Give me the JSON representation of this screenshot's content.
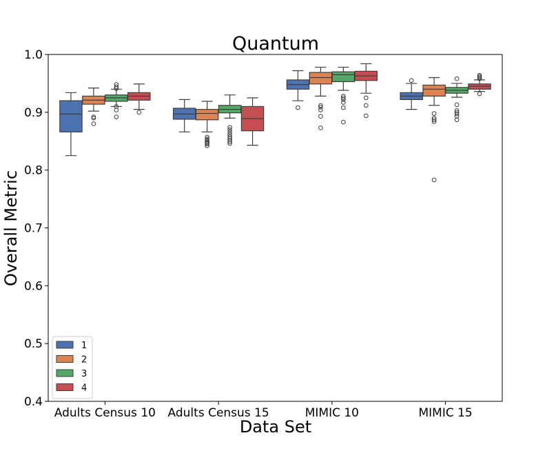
{
  "chart_data": {
    "type": "box",
    "title": "Quantum",
    "xlabel": "Data Set",
    "ylabel": "Overall Metric",
    "ylim": [
      0.4,
      1.0
    ],
    "yticks": [
      "0.4",
      "0.5",
      "0.6",
      "0.7",
      "0.8",
      "0.9",
      "1.0"
    ],
    "categories": [
      "Adults Census 10",
      "Adults Census 15",
      "MIMIC 10",
      "MIMIC 15"
    ],
    "legend_position": "bottom-left",
    "series": [
      {
        "name": "1",
        "color": "#4c72b0",
        "boxes": [
          {
            "whislo": 0.825,
            "q1": 0.866,
            "med": 0.897,
            "q3": 0.92,
            "whishi": 0.934,
            "fliers": []
          },
          {
            "whislo": 0.866,
            "q1": 0.888,
            "med": 0.897,
            "q3": 0.907,
            "whishi": 0.922,
            "fliers": []
          },
          {
            "whislo": 0.92,
            "q1": 0.94,
            "med": 0.948,
            "q3": 0.956,
            "whishi": 0.972,
            "fliers": [
              0.908
            ]
          },
          {
            "whislo": 0.905,
            "q1": 0.922,
            "med": 0.928,
            "q3": 0.934,
            "whishi": 0.95,
            "fliers": [
              0.955
            ]
          }
        ]
      },
      {
        "name": "2",
        "color": "#dd8452",
        "boxes": [
          {
            "whislo": 0.902,
            "q1": 0.914,
            "med": 0.921,
            "q3": 0.928,
            "whishi": 0.942,
            "fliers": [
              0.892,
              0.89,
              0.88
            ]
          },
          {
            "whislo": 0.866,
            "q1": 0.887,
            "med": 0.898,
            "q3": 0.905,
            "whishi": 0.919,
            "fliers": [
              0.857,
              0.854,
              0.852,
              0.849,
              0.847,
              0.845,
              0.842
            ]
          },
          {
            "whislo": 0.928,
            "q1": 0.949,
            "med": 0.96,
            "q3": 0.969,
            "whishi": 0.978,
            "fliers": [
              0.912,
              0.909,
              0.904,
              0.893,
              0.873
            ]
          },
          {
            "whislo": 0.912,
            "q1": 0.928,
            "med": 0.94,
            "q3": 0.947,
            "whishi": 0.96,
            "fliers": [
              0.898,
              0.89,
              0.887,
              0.884,
              0.783
            ]
          }
        ]
      },
      {
        "name": "3",
        "color": "#55a868",
        "boxes": [
          {
            "whislo": 0.91,
            "q1": 0.919,
            "med": 0.925,
            "q3": 0.93,
            "whishi": 0.94,
            "fliers": [
              0.948,
              0.944,
              0.941,
              0.91,
              0.904,
              0.892
            ]
          },
          {
            "whislo": 0.89,
            "q1": 0.899,
            "med": 0.905,
            "q3": 0.912,
            "whishi": 0.93,
            "fliers": [
              0.874,
              0.87,
              0.866,
              0.862,
              0.858,
              0.855,
              0.852,
              0.849,
              0.846
            ]
          },
          {
            "whislo": 0.938,
            "q1": 0.953,
            "med": 0.965,
            "q3": 0.97,
            "whishi": 0.978,
            "fliers": [
              0.928,
              0.925,
              0.922,
              0.917,
              0.908,
              0.883
            ]
          },
          {
            "whislo": 0.926,
            "q1": 0.933,
            "med": 0.938,
            "q3": 0.943,
            "whishi": 0.95,
            "fliers": [
              0.958,
              0.913,
              0.903,
              0.9,
              0.897,
              0.893,
              0.887
            ]
          }
        ]
      },
      {
        "name": "4",
        "color": "#c44e52",
        "boxes": [
          {
            "whislo": 0.905,
            "q1": 0.921,
            "med": 0.928,
            "q3": 0.934,
            "whishi": 0.949,
            "fliers": [
              0.9
            ]
          },
          {
            "whislo": 0.843,
            "q1": 0.868,
            "med": 0.889,
            "q3": 0.91,
            "whishi": 0.925,
            "fliers": []
          },
          {
            "whislo": 0.933,
            "q1": 0.955,
            "med": 0.963,
            "q3": 0.971,
            "whishi": 0.984,
            "fliers": [
              0.925,
              0.912,
              0.894
            ]
          },
          {
            "whislo": 0.936,
            "q1": 0.94,
            "med": 0.945,
            "q3": 0.949,
            "whishi": 0.956,
            "fliers": [
              0.964,
              0.962,
              0.96,
              0.958,
              0.932
            ]
          }
        ]
      }
    ]
  }
}
